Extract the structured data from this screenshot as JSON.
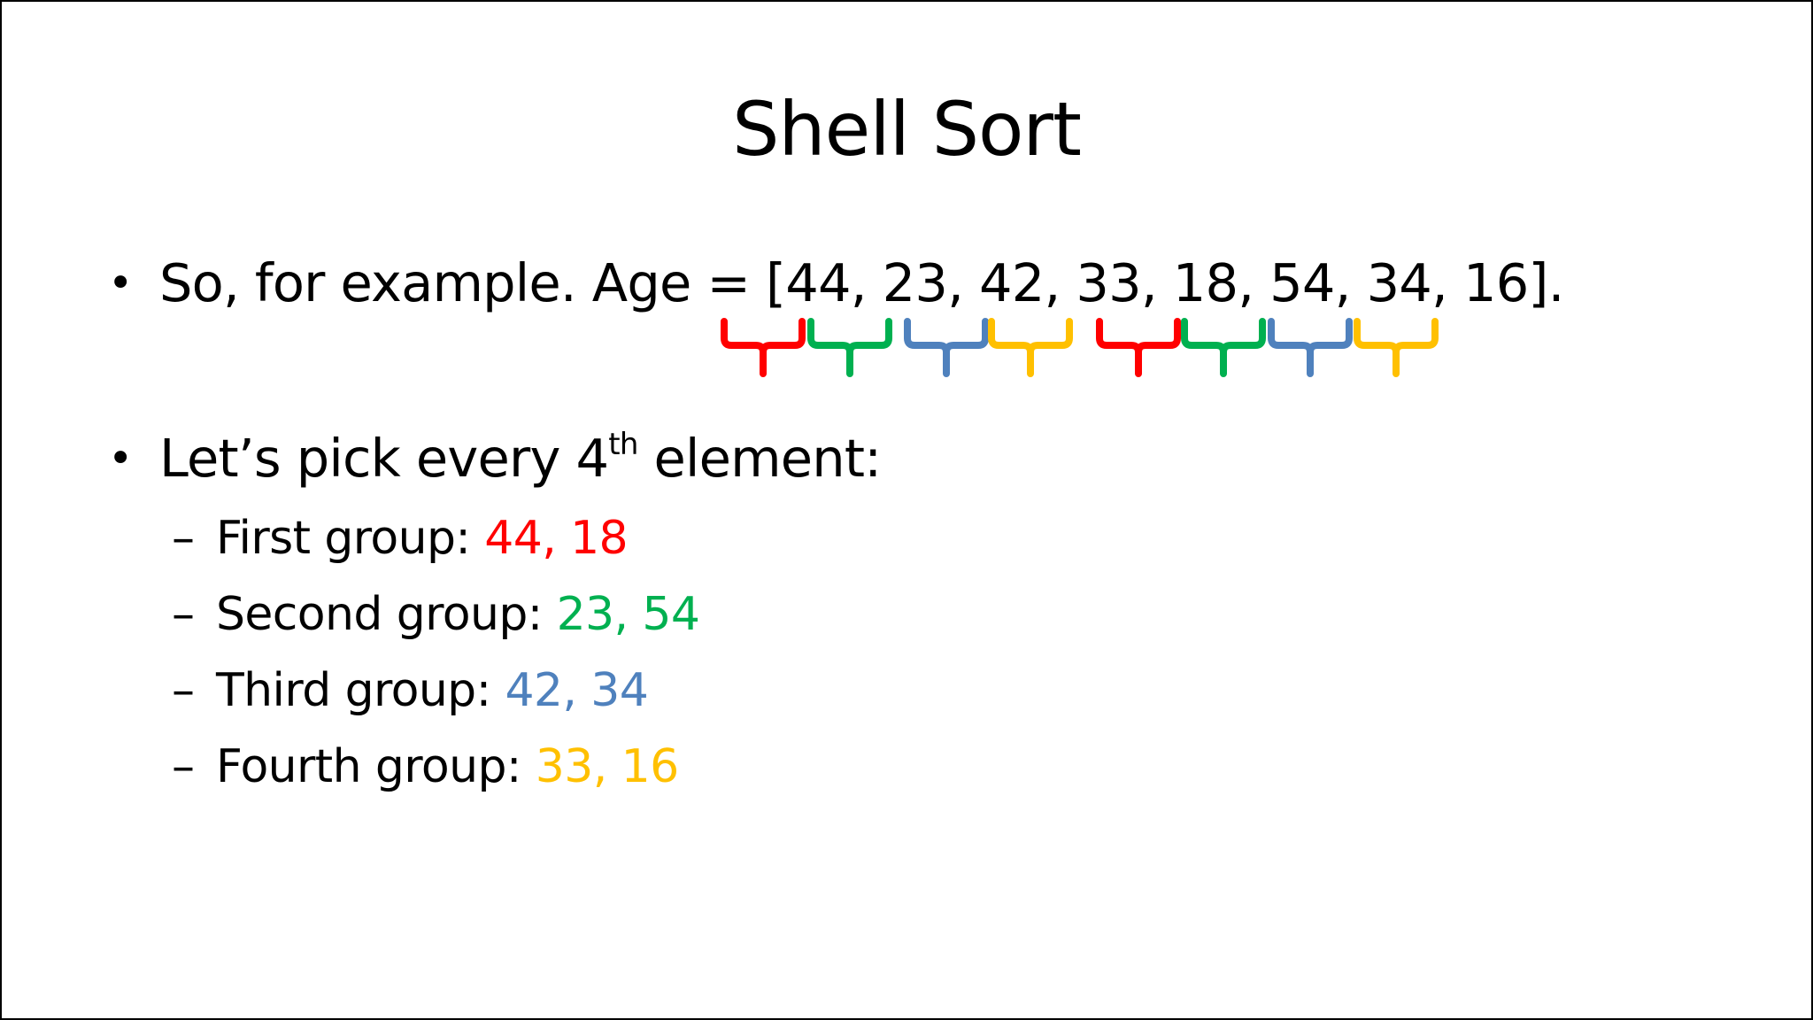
{
  "slide": {
    "title": "Shell Sort",
    "bullet_symbol": "•",
    "bullet_1": "So, for example. Age = [44, 23, 42, 33, 18, 54, 34, 16].",
    "bullet_2": {
      "before": "Let’s pick every 4",
      "superscript": "th",
      "after": " element:"
    },
    "sub_dash": "–",
    "groups": [
      {
        "label": "First group: ",
        "values": "44, 18",
        "color": "#ff0000"
      },
      {
        "label": "Second group: ",
        "values": "23, 54",
        "color": "#00b050"
      },
      {
        "label": "Third group: ",
        "values": "42, 34",
        "color": "#4f81bd"
      },
      {
        "label": "Fourth group: ",
        "values": "33, 16",
        "color": "#ffc000"
      }
    ],
    "brace_colors": [
      "#ff0000",
      "#00b050",
      "#4f81bd",
      "#ffc000",
      "#ff0000",
      "#00b050",
      "#4f81bd",
      "#ffc000"
    ]
  }
}
